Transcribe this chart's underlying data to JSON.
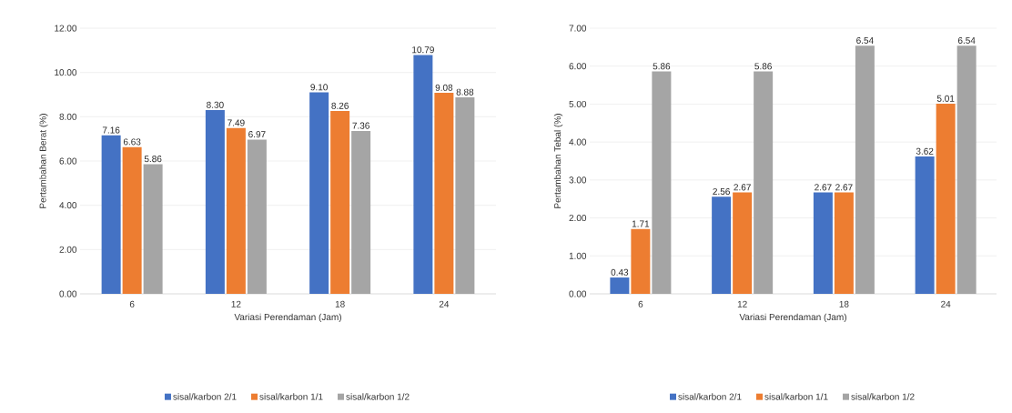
{
  "chart_data": [
    {
      "type": "bar",
      "categories": [
        "6",
        "12",
        "18",
        "24"
      ],
      "xlabel": "Variasi Perendaman (Jam)",
      "ylabel": "Pertambahan Berat (%)",
      "ylim": [
        0,
        12
      ],
      "yticks": [
        {
          "value": 0,
          "label": "0.00"
        },
        {
          "value": 2,
          "label": "2.00"
        },
        {
          "value": 4,
          "label": "4.00"
        },
        {
          "value": 6,
          "label": "6.00"
        },
        {
          "value": 8,
          "label": "8.00"
        },
        {
          "value": 10,
          "label": "10.00"
        },
        {
          "value": 12,
          "label": "12.00"
        }
      ],
      "grid": "y",
      "legend": "bottom",
      "series": [
        {
          "name": "sisal/karbon 2/1",
          "color": "#4472c4",
          "values": [
            7.16,
            8.3,
            9.1,
            10.79
          ],
          "value_labels": [
            "7.16",
            "8.30",
            "9.10",
            "10.79"
          ]
        },
        {
          "name": "sisal/karbon 1/1",
          "color": "#ed7d31",
          "values": [
            6.63,
            7.49,
            8.26,
            9.08
          ],
          "value_labels": [
            "6.63",
            "7.49",
            "8.26",
            "9.08"
          ]
        },
        {
          "name": "sisal/karbon 1/2",
          "color": "#a5a5a5",
          "values": [
            5.86,
            6.97,
            7.36,
            8.88
          ],
          "value_labels": [
            "5.86",
            "6.97",
            "7.36",
            "8.88"
          ]
        }
      ]
    },
    {
      "type": "bar",
      "categories": [
        "6",
        "12",
        "18",
        "24"
      ],
      "xlabel": "Variasi Perendaman (Jam)",
      "ylabel": "Pertambahan Tebal (%)",
      "ylim": [
        0,
        7
      ],
      "yticks": [
        {
          "value": 0,
          "label": "0.00"
        },
        {
          "value": 1,
          "label": "1.00"
        },
        {
          "value": 2,
          "label": "2.00"
        },
        {
          "value": 3,
          "label": "3.00"
        },
        {
          "value": 4,
          "label": "4.00"
        },
        {
          "value": 5,
          "label": "5.00"
        },
        {
          "value": 6,
          "label": "6.00"
        },
        {
          "value": 7,
          "label": "7.00"
        }
      ],
      "grid": "y",
      "legend": "bottom",
      "series": [
        {
          "name": "sisal/karbon 2/1",
          "color": "#4472c4",
          "values": [
            0.43,
            2.56,
            2.67,
            3.62
          ],
          "value_labels": [
            "0.43",
            "2.56",
            "2.67",
            "3.62"
          ]
        },
        {
          "name": "sisal/karbon 1/1",
          "color": "#ed7d31",
          "values": [
            1.71,
            2.67,
            2.67,
            5.01
          ],
          "value_labels": [
            "1.71",
            "2.67",
            "2.67",
            "5.01"
          ]
        },
        {
          "name": "sisal/karbon 1/2",
          "color": "#a5a5a5",
          "values": [
            5.86,
            5.86,
            6.54,
            6.54
          ],
          "value_labels": [
            "5.86",
            "5.86",
            "6.54",
            "6.54"
          ]
        }
      ]
    }
  ]
}
